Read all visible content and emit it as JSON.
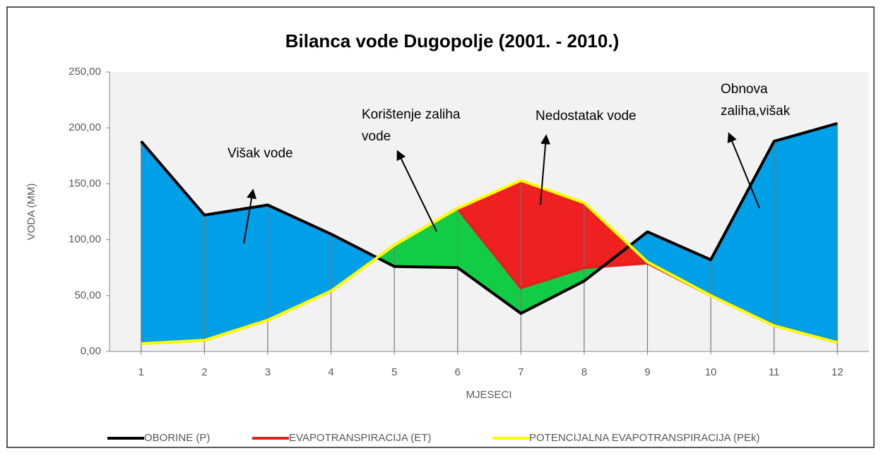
{
  "chart_data": {
    "type": "area-balance",
    "title": "Bilanca  vode Dugopolje (2001. - 2010.)",
    "xlabel": "MJESECI",
    "ylabel": "VODA (MM)",
    "x": [
      1,
      2,
      3,
      4,
      5,
      6,
      7,
      8,
      9,
      10,
      11,
      12
    ],
    "xlim": [
      0.5,
      12.5
    ],
    "ylim": [
      0,
      250
    ],
    "yticks": [
      {
        "value": 0,
        "label": "0,00"
      },
      {
        "value": 50,
        "label": "50,00"
      },
      {
        "value": 100,
        "label": "100,00"
      },
      {
        "value": 150,
        "label": "150,00"
      },
      {
        "value": 200,
        "label": "200,00"
      },
      {
        "value": 250,
        "label": "250,00"
      }
    ],
    "series": [
      {
        "name": "OBORINE (P)",
        "color": "#000000",
        "values": [
          188,
          122,
          131,
          105,
          76,
          75,
          34,
          63,
          107,
          82,
          188,
          204
        ]
      },
      {
        "name": "EVAPOTRANSPIRACIJA (ET)",
        "color": "#e61e1e",
        "values": [
          7,
          10,
          28,
          54,
          95,
          128,
          57,
          75,
          79,
          50,
          23,
          8
        ]
      },
      {
        "name": "POTENCIJALNA EVAPOTRANSPIRACIJA (PEk)",
        "color": "#ffff00",
        "values": [
          7,
          10,
          28,
          54,
          95,
          128,
          153,
          133,
          80,
          50,
          23,
          8
        ]
      }
    ],
    "fill_colors": {
      "surplus": "#00a0e9",
      "storage_use": "#11cc44",
      "deficit": "#ee2020",
      "background": "#f2f2f2"
    },
    "annotations": [
      {
        "lines": [
          "Višak vode"
        ]
      },
      {
        "lines": [
          "Korištenje zaliha",
          "vode"
        ]
      },
      {
        "lines": [
          "Nedostatak vode"
        ]
      },
      {
        "lines": [
          "Obnova",
          "zaliha,višak"
        ]
      }
    ]
  }
}
